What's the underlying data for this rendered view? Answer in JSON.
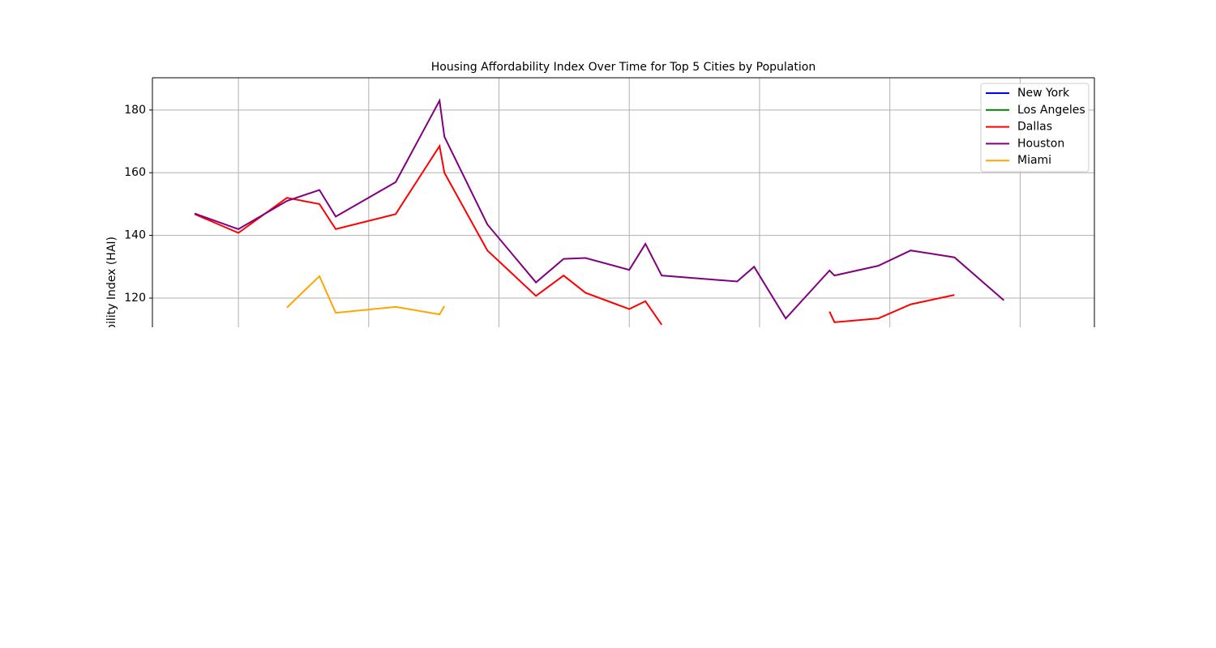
{
  "chart_data": {
    "type": "line",
    "title": "Housing Affordability Index Over Time for Top 5 Cities by Population",
    "ylabel": "bility Index (HAI)",
    "x": [
      0.664,
      1,
      1.373,
      1.622,
      1.747,
      2.207,
      2.544,
      2.581,
      2.911,
      3.284,
      3.496,
      3.664,
      4.0,
      4.124,
      4.249,
      4.828,
      4.958,
      5.201,
      5.537,
      5.575,
      5.911,
      6.16,
      6.496,
      6.875
    ],
    "series": [
      {
        "name": "New York",
        "color": "#0000ff",
        "values": [
          null,
          null,
          null,
          null,
          null,
          null,
          null,
          null,
          null,
          null,
          null,
          null,
          null,
          null,
          null,
          null,
          null,
          null,
          null,
          null,
          null,
          null,
          null,
          null
        ]
      },
      {
        "name": "Los Angeles",
        "color": "#008000",
        "values": [
          null,
          null,
          null,
          null,
          null,
          null,
          null,
          null,
          null,
          null,
          null,
          null,
          null,
          null,
          null,
          null,
          null,
          null,
          null,
          null,
          null,
          null,
          null,
          null
        ]
      },
      {
        "name": "Dallas",
        "color": "#ff0000",
        "values": [
          146.8,
          140.8,
          152,
          150,
          142,
          146.8,
          168.5,
          160,
          135.2,
          120.7,
          127.2,
          121.7,
          116.5,
          119,
          111.5,
          null,
          null,
          null,
          115.7,
          112.3,
          113.5,
          118,
          121,
          null
        ]
      },
      {
        "name": "Houston",
        "color": "#800080",
        "values": [
          147,
          142,
          151,
          154.5,
          146,
          157,
          183,
          171.5,
          143.5,
          125,
          132.5,
          132.8,
          129,
          137.3,
          127.2,
          125.3,
          130,
          113.5,
          128.8,
          127.2,
          130.3,
          135.2,
          133,
          119.3
        ]
      },
      {
        "name": "Miami",
        "color": "#ffa500",
        "values": [
          null,
          null,
          117,
          127,
          115.3,
          117.2,
          114.8,
          117.5,
          null,
          null,
          null,
          null,
          null,
          null,
          null,
          null,
          null,
          null,
          null,
          null,
          null,
          null,
          null,
          null
        ]
      }
    ],
    "xlim": [
      0.34,
      7.57
    ],
    "xticks": [
      1,
      2,
      3,
      4,
      5,
      6,
      7
    ],
    "ylim": [
      110.7,
      190.3
    ],
    "yticks": [
      120,
      140,
      160,
      180
    ],
    "grid": true,
    "legend": "upper right"
  }
}
